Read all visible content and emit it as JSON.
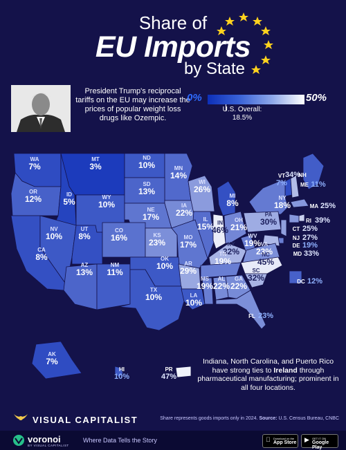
{
  "header": {
    "title_line1": "Share of",
    "title_line2": "EU Imports",
    "title_line3": "by State"
  },
  "note_top": "President Trump's reciprocal tariffs on the EU may increase the prices of popular weight loss drugs like Ozempic.",
  "legend": {
    "min": "0%",
    "max": "50%",
    "overall_label": "U.S. Overall:",
    "overall_value": "18.5%",
    "overall_fraction": 0.185
  },
  "states": [
    {
      "abbr": "WA",
      "value": "7%"
    },
    {
      "abbr": "MT",
      "value": "3%"
    },
    {
      "abbr": "ND",
      "value": "10%"
    },
    {
      "abbr": "MN",
      "value": "14%"
    },
    {
      "abbr": "ME",
      "value": "11%"
    },
    {
      "abbr": "VT",
      "value": "7%"
    },
    {
      "abbr": "NH",
      "value": "34%"
    },
    {
      "abbr": "OR",
      "value": "12%"
    },
    {
      "abbr": "ID",
      "value": "5%"
    },
    {
      "abbr": "WY",
      "value": "10%"
    },
    {
      "abbr": "SD",
      "value": "13%"
    },
    {
      "abbr": "WI",
      "value": "26%"
    },
    {
      "abbr": "MI",
      "value": "8%"
    },
    {
      "abbr": "NY",
      "value": "18%"
    },
    {
      "abbr": "MA",
      "value": "25%"
    },
    {
      "abbr": "NE",
      "value": "17%"
    },
    {
      "abbr": "IA",
      "value": "22%"
    },
    {
      "abbr": "IL",
      "value": "15%"
    },
    {
      "abbr": "IN",
      "value": "46%"
    },
    {
      "abbr": "OH",
      "value": "21%"
    },
    {
      "abbr": "PA",
      "value": "30%"
    },
    {
      "abbr": "RI",
      "value": "39%"
    },
    {
      "abbr": "CT",
      "value": "25%"
    },
    {
      "abbr": "NJ",
      "value": "27%"
    },
    {
      "abbr": "DE",
      "value": "19%"
    },
    {
      "abbr": "MD",
      "value": "33%"
    },
    {
      "abbr": "CA",
      "value": "8%"
    },
    {
      "abbr": "NV",
      "value": "10%"
    },
    {
      "abbr": "UT",
      "value": "8%"
    },
    {
      "abbr": "CO",
      "value": "16%"
    },
    {
      "abbr": "KS",
      "value": "23%"
    },
    {
      "abbr": "MO",
      "value": "17%"
    },
    {
      "abbr": "KY",
      "value": "32%"
    },
    {
      "abbr": "WV",
      "value": "19%"
    },
    {
      "abbr": "VA",
      "value": "23%"
    },
    {
      "abbr": "AZ",
      "value": "13%"
    },
    {
      "abbr": "NM",
      "value": "11%"
    },
    {
      "abbr": "OK",
      "value": "10%"
    },
    {
      "abbr": "AR",
      "value": "29%"
    },
    {
      "abbr": "TN",
      "value": "19%"
    },
    {
      "abbr": "NC",
      "value": "45%"
    },
    {
      "abbr": "SC",
      "value": "32%"
    },
    {
      "abbr": "DC",
      "value": "12%"
    },
    {
      "abbr": "TX",
      "value": "10%"
    },
    {
      "abbr": "LA",
      "value": "10%"
    },
    {
      "abbr": "MS",
      "value": "19%"
    },
    {
      "abbr": "AL",
      "value": "22%"
    },
    {
      "abbr": "GA",
      "value": "22%"
    },
    {
      "abbr": "FL",
      "value": "23%"
    },
    {
      "abbr": "AK",
      "value": "7%"
    },
    {
      "abbr": "HI",
      "value": "10%"
    },
    {
      "abbr": "PR",
      "value": "47%"
    }
  ],
  "note_bottom": {
    "part1": "Indiana, North Carolina, and Puerto Rico have strong ties to ",
    "emph": "Ireland",
    "part2": " through pharmaceutical manufacturing; prominent in all four locations."
  },
  "branding": {
    "publisher": "VISUAL CAPITALIST",
    "source_pre": "Share represents goods imports only in 2024. ",
    "source_label": "Source:",
    "source_text": " U.S. Census Bureau, CNBC",
    "app_name": "voronoi",
    "app_sub": "BY VISUAL CAPITALIST",
    "tagline": "Where Data Tells the Story",
    "appstore_small": "Download on the",
    "appstore_big": "App Store",
    "playstore_small": "GET IT ON",
    "playstore_big": "Google Play"
  },
  "colors": {
    "background": "#14124a",
    "scale_low": "#0d2fb8",
    "scale_high": "#ffffff"
  }
}
